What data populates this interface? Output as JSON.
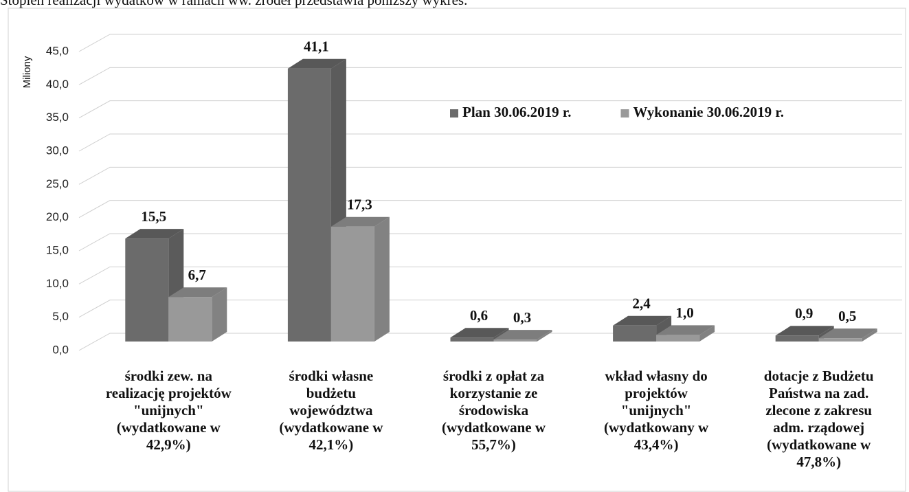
{
  "chart_data": {
    "type": "bar3d",
    "caption": "Stopień realizacji wydatków w ramach ww. źródeł przedstawia poniższy wykres.",
    "ylabel": "Miliony",
    "categories": [
      "środki zew. na realizację projektów \"unijnych\" (wydatkowane w 42,9%)",
      "środki własne budżetu województwa (wydatkowane w 42,1%)",
      "środki z opłat za korzystanie ze środowiska (wydatkowane w 55,7%)",
      "wkład własny do projektów \"unijnych\" (wydatkowany w 43,4%)",
      "dotacje z Budżetu Państwa na zad. zlecone z zakresu adm. rządowej (wydatkowane w 47,8%)"
    ],
    "series": [
      {
        "name": "Plan 30.06.2019 r.",
        "color": "#6b6b6b",
        "values": [
          15.5,
          41.1,
          0.6,
          2.4,
          0.9
        ],
        "value_labels": [
          "15,5",
          "41,1",
          "0,6",
          "2,4",
          "0,9"
        ]
      },
      {
        "name": "Wykonanie 30.06.2019 r.",
        "color": "#999999",
        "values": [
          6.7,
          17.3,
          0.3,
          1.0,
          0.5
        ],
        "value_labels": [
          "6,7",
          "17,3",
          "0,3",
          "1,0",
          "0,5"
        ]
      }
    ],
    "ylim": [
      0,
      45
    ],
    "yticks": [
      {
        "value": 0,
        "label": "0,0"
      },
      {
        "value": 5,
        "label": "5,0"
      },
      {
        "value": 10,
        "label": "10,0"
      },
      {
        "value": 15,
        "label": "15,0"
      },
      {
        "value": 20,
        "label": "20,0"
      },
      {
        "value": 25,
        "label": "25,0"
      },
      {
        "value": 30,
        "label": "30,0"
      },
      {
        "value": 35,
        "label": "35,0"
      },
      {
        "value": 40,
        "label": "40,0"
      },
      {
        "value": 45,
        "label": "45,0"
      }
    ],
    "grid": true,
    "legend": "top-right"
  }
}
